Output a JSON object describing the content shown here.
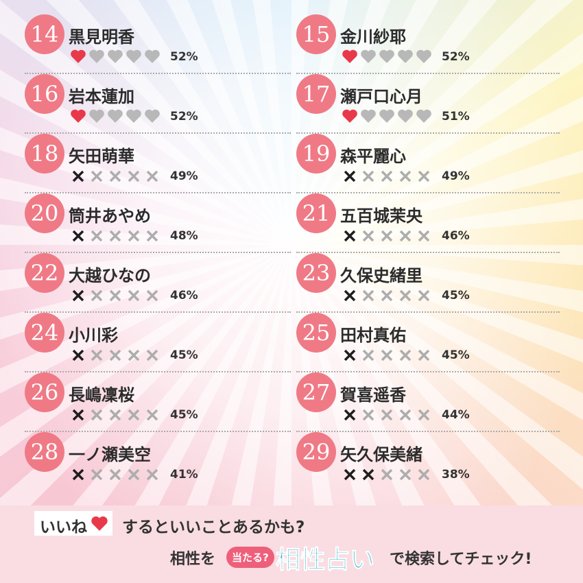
{
  "entries": [
    {
      "rank": 14,
      "name": "黒見明香",
      "mark": "heart",
      "filled": 1,
      "percent": "52%"
    },
    {
      "rank": 15,
      "name": "金川紗耶",
      "mark": "heart",
      "filled": 1,
      "percent": "52%"
    },
    {
      "rank": 16,
      "name": "岩本蓮加",
      "mark": "heart",
      "filled": 1,
      "percent": "52%"
    },
    {
      "rank": 17,
      "name": "瀬戸口心月",
      "mark": "heart",
      "filled": 1,
      "percent": "51%"
    },
    {
      "rank": 18,
      "name": "矢田萌華",
      "mark": "cross",
      "filled": 1,
      "percent": "49%"
    },
    {
      "rank": 19,
      "name": "森平麗心",
      "mark": "cross",
      "filled": 1,
      "percent": "49%"
    },
    {
      "rank": 20,
      "name": "筒井あやめ",
      "mark": "cross",
      "filled": 1,
      "percent": "48%"
    },
    {
      "rank": 21,
      "name": "五百城茉央",
      "mark": "cross",
      "filled": 1,
      "percent": "46%"
    },
    {
      "rank": 22,
      "name": "大越ひなの",
      "mark": "cross",
      "filled": 1,
      "percent": "46%"
    },
    {
      "rank": 23,
      "name": "久保史緒里",
      "mark": "cross",
      "filled": 1,
      "percent": "45%"
    },
    {
      "rank": 24,
      "name": "小川彩",
      "mark": "cross",
      "filled": 1,
      "percent": "45%"
    },
    {
      "rank": 25,
      "name": "田村真佑",
      "mark": "cross",
      "filled": 1,
      "percent": "45%"
    },
    {
      "rank": 26,
      "name": "長嶋凜桜",
      "mark": "cross",
      "filled": 1,
      "percent": "45%"
    },
    {
      "rank": 27,
      "name": "賀喜遥香",
      "mark": "cross",
      "filled": 1,
      "percent": "44%"
    },
    {
      "rank": 28,
      "name": "一ノ瀬美空",
      "mark": "cross",
      "filled": 1,
      "percent": "41%"
    },
    {
      "rank": 29,
      "name": "矢久保美緒",
      "mark": "cross",
      "filled": 2,
      "percent": "38%"
    }
  ],
  "footer": {
    "badge": "いいね",
    "line1": "するといいことあるかも?",
    "prefix": "相性を",
    "bubble": "当たる?",
    "logo": "相性占い",
    "suffix": "で検索してチェック!"
  }
}
